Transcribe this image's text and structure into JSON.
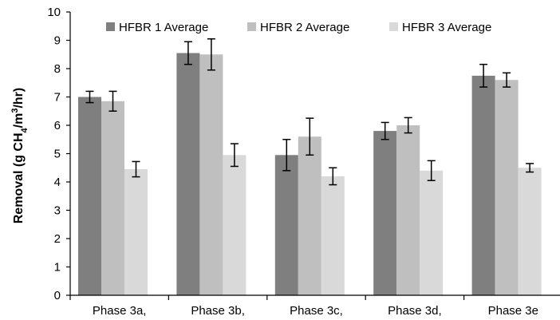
{
  "chart_data": {
    "type": "bar",
    "categories": [
      "Phase 3a,",
      "Phase 3b,",
      "Phase 3c,",
      "Phase 3d,",
      "Phase 3e"
    ],
    "series": [
      {
        "name": "HFBR 1 Average",
        "color": "#7f7f7f",
        "values": [
          7.0,
          8.55,
          4.95,
          5.8,
          7.75
        ],
        "error": [
          0.2,
          0.4,
          0.55,
          0.3,
          0.4
        ]
      },
      {
        "name": "HFBR 2 Average",
        "color": "#bfbfbf",
        "values": [
          6.85,
          8.5,
          5.6,
          6.0,
          7.6
        ],
        "error": [
          0.35,
          0.55,
          0.65,
          0.27,
          0.25
        ]
      },
      {
        "name": "HFBR 3 Average",
        "color": "#d9d9d9",
        "values": [
          4.45,
          4.95,
          4.2,
          4.4,
          4.5
        ],
        "error": [
          0.27,
          0.4,
          0.3,
          0.35,
          0.15
        ]
      }
    ],
    "ylabel_prefix": "Removal (g CH",
    "ylabel_sub4": "4",
    "ylabel_mid": "/m",
    "ylabel_sup3": "3",
    "ylabel_suffix": "/hr)",
    "ylim": [
      0,
      10
    ],
    "yticks": [
      "0",
      "1",
      "2",
      "3",
      "4",
      "5",
      "6",
      "7",
      "8",
      "9",
      "10"
    ],
    "grid": false,
    "legend_position": "top"
  }
}
